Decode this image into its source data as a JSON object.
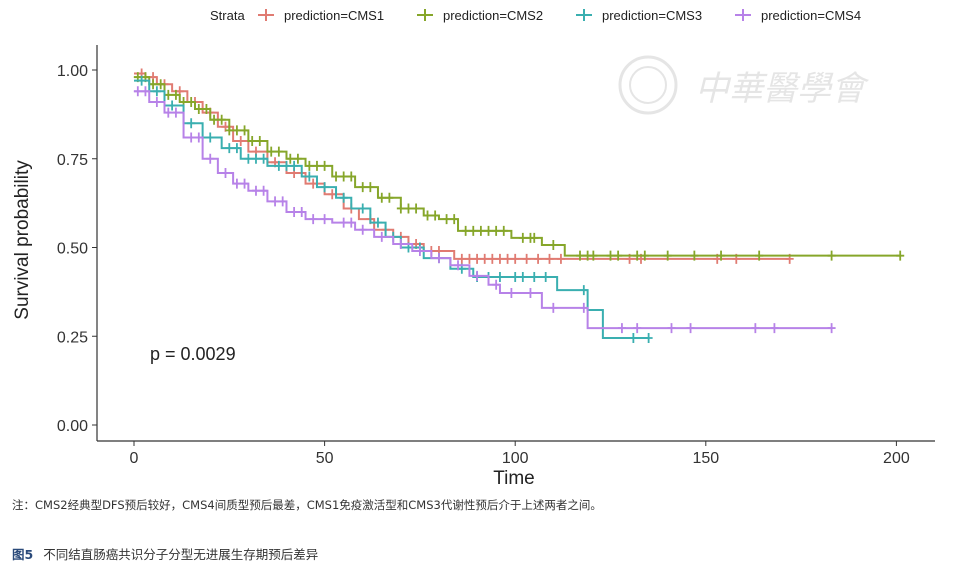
{
  "chart_data": {
    "type": "line",
    "subtype": "kaplan-meier step curves",
    "xlabel": "Time",
    "ylabel": "Survival probability",
    "xlim": [
      -8,
      210
    ],
    "ylim": [
      0,
      1.05
    ],
    "x_ticks": [
      "0",
      "50",
      "100",
      "150",
      "200"
    ],
    "y_ticks": [
      "0.00",
      "0.25",
      "0.50",
      "0.75",
      "1.00"
    ],
    "grid": false,
    "legend": {
      "title": "Strata",
      "placement": "top"
    },
    "annotation": "p = 0.0029",
    "series": [
      {
        "name": "prediction=CMS1",
        "color": "#e07b72",
        "times": [
          0,
          3,
          6,
          10,
          14,
          18,
          22,
          26,
          30,
          35,
          40,
          45,
          50,
          55,
          59,
          63,
          68,
          72,
          76,
          84
        ],
        "survival": [
          0.99,
          0.98,
          0.96,
          0.94,
          0.91,
          0.88,
          0.84,
          0.8,
          0.77,
          0.74,
          0.71,
          0.68,
          0.65,
          0.61,
          0.58,
          0.55,
          0.53,
          0.51,
          0.49,
          0.468
        ],
        "end_time": 172,
        "censored": [
          2,
          5,
          8,
          12,
          16,
          20,
          24,
          28,
          32,
          37,
          42,
          47,
          52,
          57,
          62,
          66,
          70,
          74,
          78,
          80,
          86,
          88,
          90,
          92,
          94,
          96,
          98,
          100,
          103,
          106,
          109,
          112,
          130,
          133,
          153,
          158,
          172
        ]
      },
      {
        "name": "prediction=CMS2",
        "color": "#86a62a",
        "times": [
          0,
          4,
          8,
          12,
          16,
          20,
          25,
          30,
          35,
          40,
          45,
          52,
          58,
          64,
          70,
          76,
          80,
          85,
          99,
          107,
          113
        ],
        "survival": [
          0.98,
          0.96,
          0.93,
          0.91,
          0.89,
          0.86,
          0.83,
          0.8,
          0.77,
          0.75,
          0.73,
          0.7,
          0.67,
          0.64,
          0.61,
          0.59,
          0.58,
          0.547,
          0.527,
          0.507,
          0.477
        ],
        "end_time": 201,
        "censored": [
          1,
          3,
          5,
          7,
          9,
          11,
          13,
          15,
          17,
          19,
          21,
          23,
          25,
          27,
          29,
          31,
          33,
          36,
          38,
          41,
          43,
          46,
          48,
          50,
          53,
          55,
          57,
          60,
          62,
          65,
          67,
          70,
          72,
          74,
          77,
          79,
          82,
          84,
          87,
          89,
          91,
          93,
          95,
          97,
          102,
          104,
          105,
          110,
          117,
          119,
          120.5,
          125,
          127,
          132,
          134,
          140,
          147,
          154,
          164,
          183,
          201
        ]
      },
      {
        "name": "prediction=CMS3",
        "color": "#3aafb0",
        "times": [
          0,
          4,
          8,
          13,
          18,
          23,
          28,
          35,
          44,
          48,
          53,
          57,
          62,
          66,
          70,
          76,
          83,
          89,
          111,
          119,
          123
        ],
        "survival": [
          0.97,
          0.94,
          0.9,
          0.85,
          0.81,
          0.78,
          0.75,
          0.73,
          0.7,
          0.67,
          0.64,
          0.61,
          0.57,
          0.53,
          0.5,
          0.47,
          0.44,
          0.417,
          0.38,
          0.324,
          0.245
        ],
        "end_time": 135,
        "censored": [
          2,
          6,
          10,
          15,
          20,
          25,
          27,
          30,
          32,
          34,
          38,
          40,
          42,
          46,
          50,
          55,
          60,
          64,
          68,
          72,
          75,
          80,
          86,
          90,
          93,
          96,
          100,
          102,
          105,
          108,
          118,
          131,
          135
        ]
      },
      {
        "name": "prediction=CMS4",
        "color": "#b782e8",
        "times": [
          0,
          4,
          8,
          13,
          18,
          22,
          26,
          30,
          35,
          40,
          45,
          52,
          58,
          63,
          68,
          73,
          78,
          83,
          88,
          93,
          96,
          107,
          119
        ],
        "survival": [
          0.94,
          0.91,
          0.88,
          0.81,
          0.75,
          0.71,
          0.68,
          0.66,
          0.63,
          0.6,
          0.58,
          0.57,
          0.55,
          0.53,
          0.51,
          0.49,
          0.47,
          0.45,
          0.42,
          0.395,
          0.372,
          0.33,
          0.273
        ],
        "end_time": 183,
        "censored": [
          1,
          3,
          6,
          9,
          11,
          15,
          17,
          20,
          24,
          27,
          29,
          32,
          34,
          37,
          39,
          42,
          44,
          47,
          50,
          55,
          57,
          60,
          65,
          70,
          75,
          80,
          85,
          90,
          95,
          99,
          104,
          110,
          118,
          128,
          132,
          141,
          146,
          163,
          168,
          183
        ]
      }
    ]
  },
  "watermark": "中華醫學會",
  "caption": {
    "note": "注：CMS2经典型DFS预后较好，CMS4间质型预后最差，CMS1免疫激活型和CMS3代谢性预后介于上述两者之间。",
    "figure_label": "图5",
    "figure_title": "不同结直肠癌共识分子分型无进展生存期预后差异"
  }
}
